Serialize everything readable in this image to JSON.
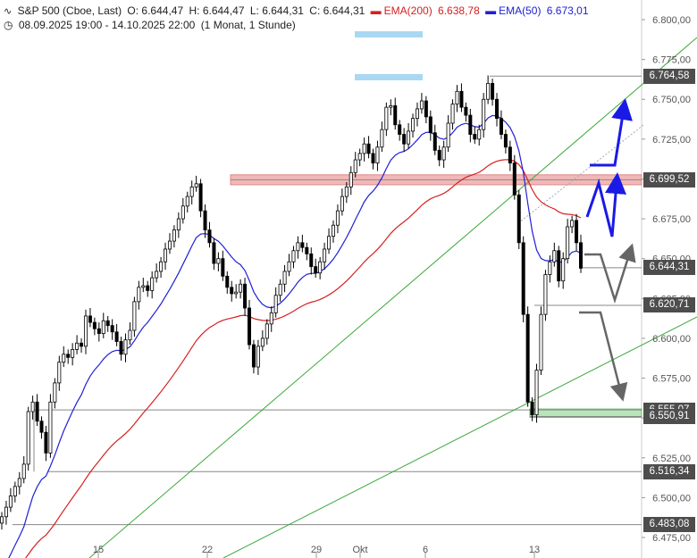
{
  "header": {
    "symbol": "S&P 500 (Cboe, Last)",
    "open": "O: 6.644,47",
    "high": "H: 6.644,47",
    "low": "L: 6.644,31",
    "close": "C: 6.644,31",
    "ema200_label": "EMA(200)",
    "ema200_value": "6.638,78",
    "ema50_label": "EMA(50)",
    "ema50_value": "6.673,01",
    "range": "08.09.2025 19:00 - 14.10.2025 22:00",
    "period": "(1 Monat, 1 Stunde)"
  },
  "colors": {
    "candle": "#000000",
    "ema200": "#d62020",
    "ema50": "#2020d6",
    "trendline": "#3ca83c",
    "resistance_zone": "#f2b8b8",
    "support_zone": "#b8e6b8",
    "arrow_blue": "#1a1ae6",
    "arrow_gray": "#666666",
    "tag_bg": "#4d4d4d"
  },
  "chart_data": {
    "type": "candlestick",
    "ylim": [
      6475,
      6800
    ],
    "y_ticks": [
      "6.800,00",
      "6.775,00",
      "6.750,00",
      "6.725,00",
      "6.700,00",
      "6.675,00",
      "6.650,00",
      "6.625,00",
      "6.600,00",
      "6.575,00",
      "6.550,00",
      "6.525,00",
      "6.500,00",
      "6.475,00"
    ],
    "x_ticks": [
      "15",
      "22",
      "29",
      "Okt",
      "6",
      "13"
    ],
    "level_tags": [
      {
        "label": "6.764,58",
        "value": 6764.58
      },
      {
        "label": "6.699,52",
        "value": 6699.52
      },
      {
        "label": "6.644,31",
        "value": 6644.31
      },
      {
        "label": "6.620,71",
        "value": 6620.71
      },
      {
        "label": "6.555,07",
        "value": 6555.07
      },
      {
        "label": "6.550,91",
        "value": 6550.91
      },
      {
        "label": "6.516,34",
        "value": 6516.34
      },
      {
        "label": "6.483,08",
        "value": 6483.08
      }
    ],
    "closes": [
      6488,
      6494,
      6501,
      6507,
      6512,
      6521,
      6554,
      6560,
      6548,
      6541,
      6528,
      6560,
      6572,
      6585,
      6590,
      6588,
      6593,
      6597,
      6595,
      6614,
      6610,
      6606,
      6603,
      6611,
      6608,
      6604,
      6598,
      6590,
      6599,
      6605,
      6623,
      6632,
      6633,
      6630,
      6638,
      6642,
      6648,
      6656,
      6661,
      6668,
      6675,
      6683,
      6689,
      6695,
      6697,
      6680,
      6668,
      6660,
      6647,
      6650,
      6639,
      6632,
      6628,
      6629,
      6634,
      6619,
      6596,
      6582,
      6595,
      6600,
      6609,
      6616,
      6627,
      6634,
      6642,
      6648,
      6655,
      6660,
      6657,
      6653,
      6645,
      6641,
      6648,
      6656,
      6664,
      6671,
      6680,
      6689,
      6695,
      6704,
      6712,
      6716,
      6722,
      6716,
      6710,
      6720,
      6731,
      6745,
      6746,
      6734,
      6728,
      6722,
      6730,
      6738,
      6744,
      6749,
      6739,
      6729,
      6718,
      6712,
      6720,
      6735,
      6747,
      6755,
      6745,
      6740,
      6728,
      6725,
      6731,
      6750,
      6760,
      6750,
      6738,
      6728,
      6720,
      6710,
      6690,
      6660,
      6615,
      6560,
      6552,
      6580,
      6615,
      6640,
      6648,
      6655,
      6636,
      6650,
      6670,
      6674,
      6660,
      6644
    ]
  },
  "annotations": {
    "support_zone": [
      6550.91,
      6555.07
    ],
    "resistance_zone": [
      6697.5,
      6701.5
    ]
  }
}
